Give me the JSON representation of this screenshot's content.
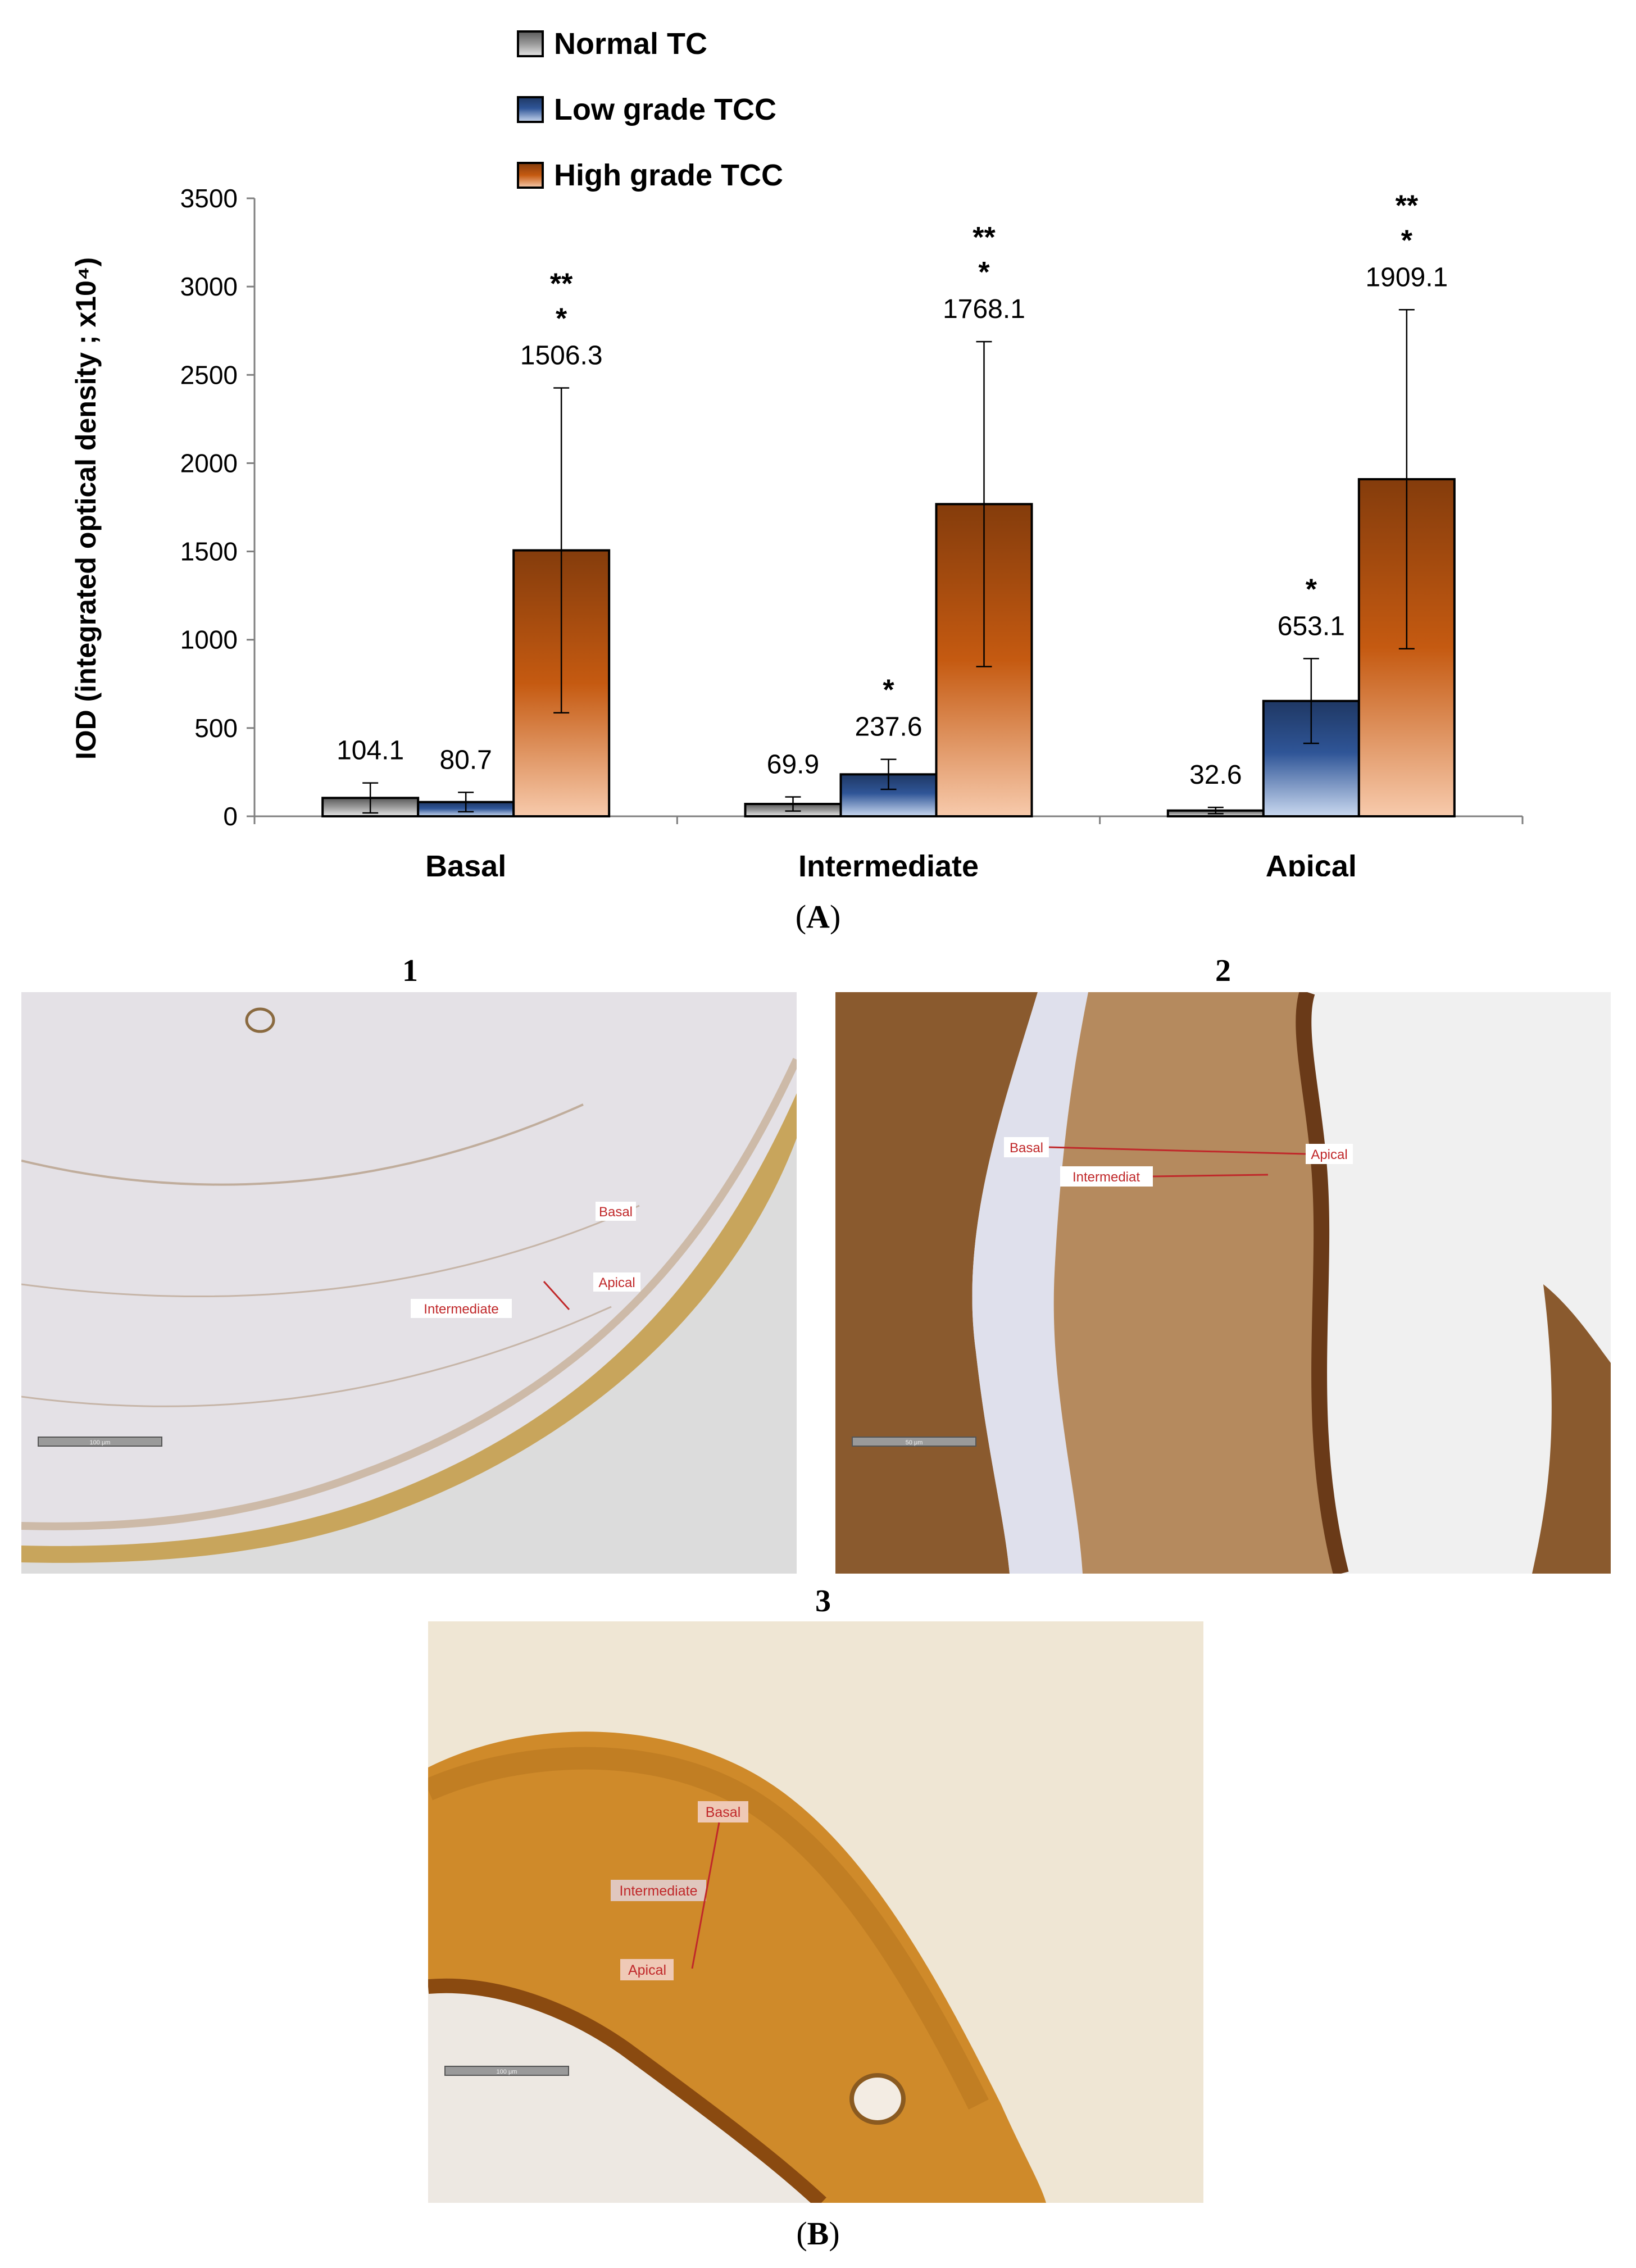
{
  "chart_data": {
    "type": "bar",
    "categories": [
      "Basal",
      "Intermediate",
      "Apical"
    ],
    "series": [
      {
        "name": "Normal TC",
        "values": [
          104.1,
          69.9,
          32.6
        ],
        "errors": [
          85,
          40,
          18
        ],
        "color": "#8c8c8c"
      },
      {
        "name": "Low grade TCC",
        "values": [
          80.7,
          237.6,
          653.1
        ],
        "errors": [
          55,
          85,
          240
        ],
        "color": "#2f5597"
      },
      {
        "name": "High grade TCC",
        "values": [
          1506.3,
          1768.1,
          1909.1
        ],
        "errors": [
          920,
          920,
          960
        ],
        "color": "#c55a11"
      }
    ],
    "value_labels": [
      [
        "104.1",
        "80.7",
        "1506.3"
      ],
      [
        "69.9",
        "237.6",
        "1768.1"
      ],
      [
        "32.6",
        "653.1",
        "1909.1"
      ]
    ],
    "significance": [
      [
        "",
        "",
        "*|**"
      ],
      [
        "",
        "*",
        "*|**"
      ],
      [
        "",
        "*",
        "*|**"
      ]
    ],
    "ylabel": "IOD (integrated optical density ; x10⁴)",
    "ylim": [
      0,
      3500
    ],
    "yticks": [
      0,
      500,
      1000,
      1500,
      2000,
      2500,
      3000,
      3500
    ],
    "grid": false,
    "legend_position": "top"
  },
  "panel_a_label": {
    "open": "(",
    "letter": "A",
    "close": ")"
  },
  "panel_b_label": {
    "open": "(",
    "letter": "B",
    "close": ")"
  },
  "micrographs": [
    {
      "number": "1",
      "labels": [
        "Basal",
        "Apical",
        "Intermediate"
      ],
      "scale": "100 μm"
    },
    {
      "number": "2",
      "labels": [
        "Basal",
        "Intermediat",
        "Apical"
      ],
      "scale": "50 μm"
    },
    {
      "number": "3",
      "labels": [
        "Basal",
        "Intermediate",
        "Apical"
      ],
      "scale": "100 μm"
    }
  ]
}
